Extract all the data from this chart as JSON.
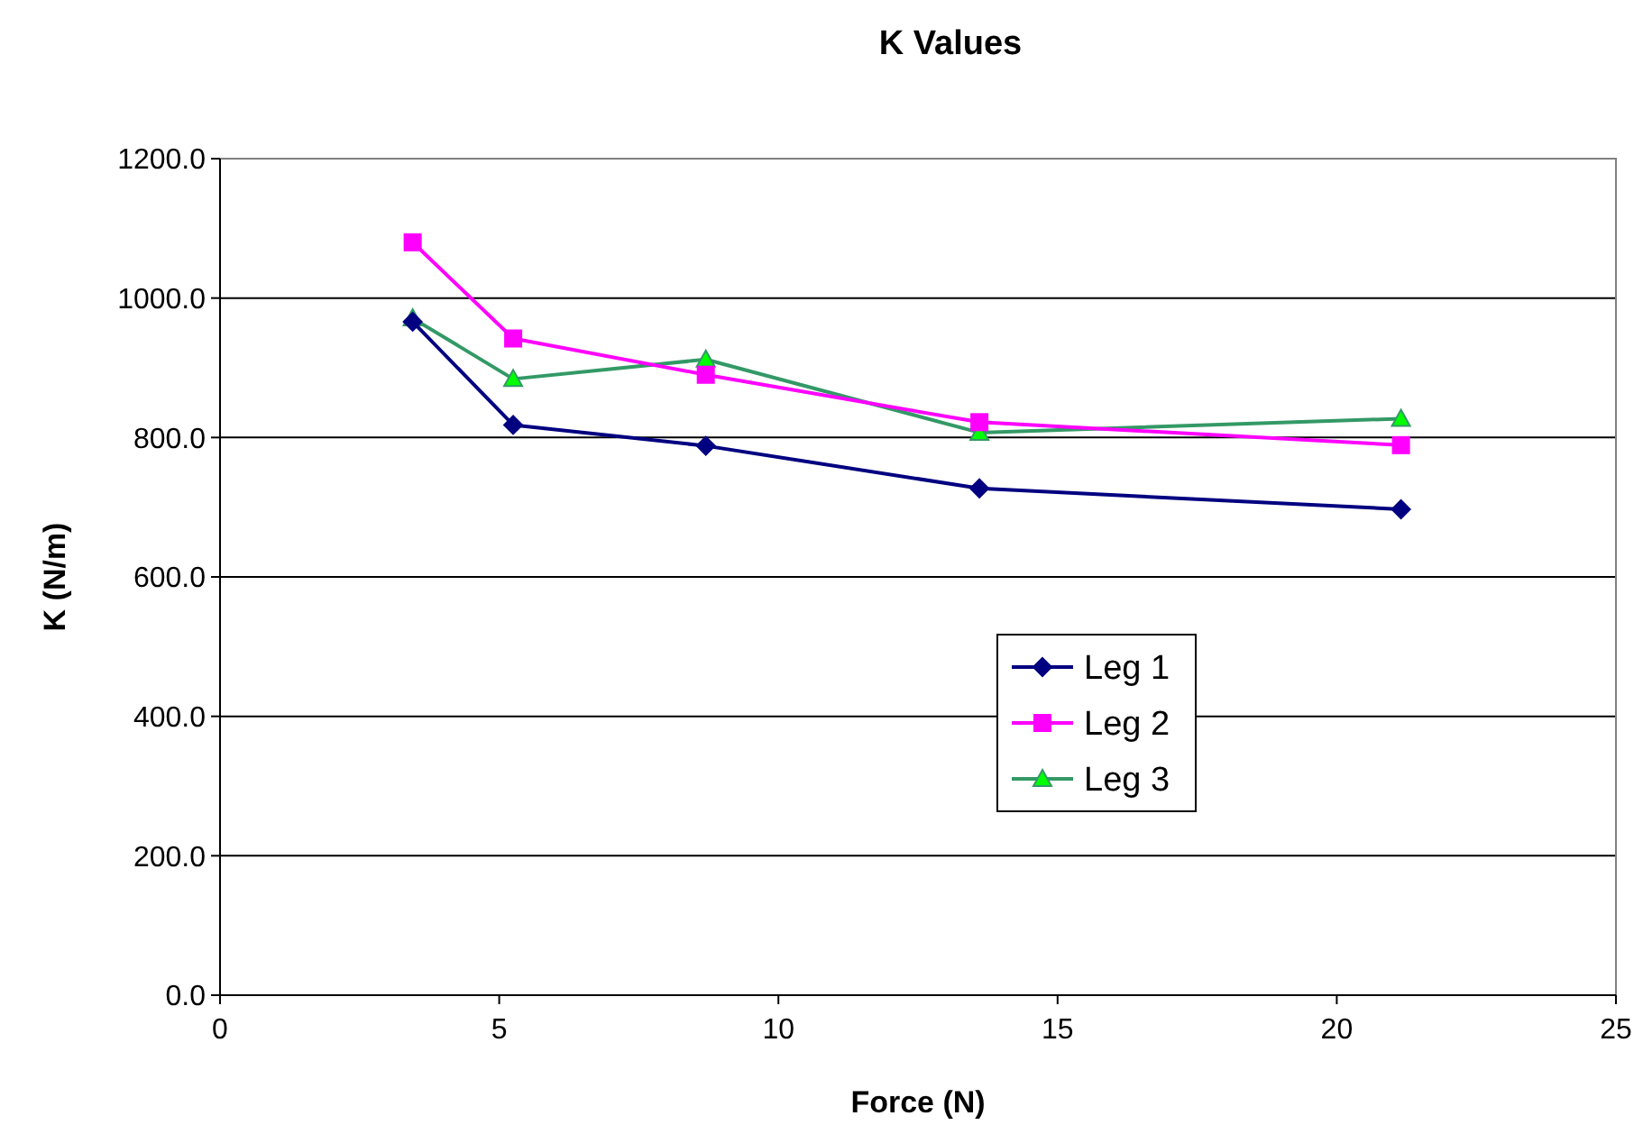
{
  "chart_data": {
    "type": "line",
    "title": "K Values",
    "xlabel": "Force (N)",
    "ylabel": "K  (N/m)",
    "x": [
      3.45,
      5.25,
      8.7,
      13.6,
      21.15
    ],
    "series": [
      {
        "name": "Leg 1",
        "color": "#000080",
        "marker": "diamond",
        "values": [
          966,
          818,
          788,
          727,
          697
        ]
      },
      {
        "name": "Leg 2",
        "color": "#ff00ff",
        "marker": "square",
        "values": [
          1080,
          942,
          890,
          822,
          789
        ]
      },
      {
        "name": "Leg 3",
        "color": "#339966",
        "marker": "triangle",
        "values": [
          971,
          884,
          912,
          807,
          827
        ]
      }
    ],
    "xlim": [
      0,
      25
    ],
    "xticks": [
      0,
      5,
      10,
      15,
      20,
      25
    ],
    "ylim": [
      0,
      1200
    ],
    "yticks": [
      {
        "value": 0,
        "label": "0.0"
      },
      {
        "value": 200,
        "label": "200.0"
      },
      {
        "value": 400,
        "label": "400.0"
      },
      {
        "value": 600,
        "label": "600.0"
      },
      {
        "value": 800,
        "label": "800.0"
      },
      {
        "value": 1000,
        "label": "1000.0"
      },
      {
        "value": 1200,
        "label": "1200.0"
      }
    ],
    "grid": "y",
    "legend": "right"
  }
}
